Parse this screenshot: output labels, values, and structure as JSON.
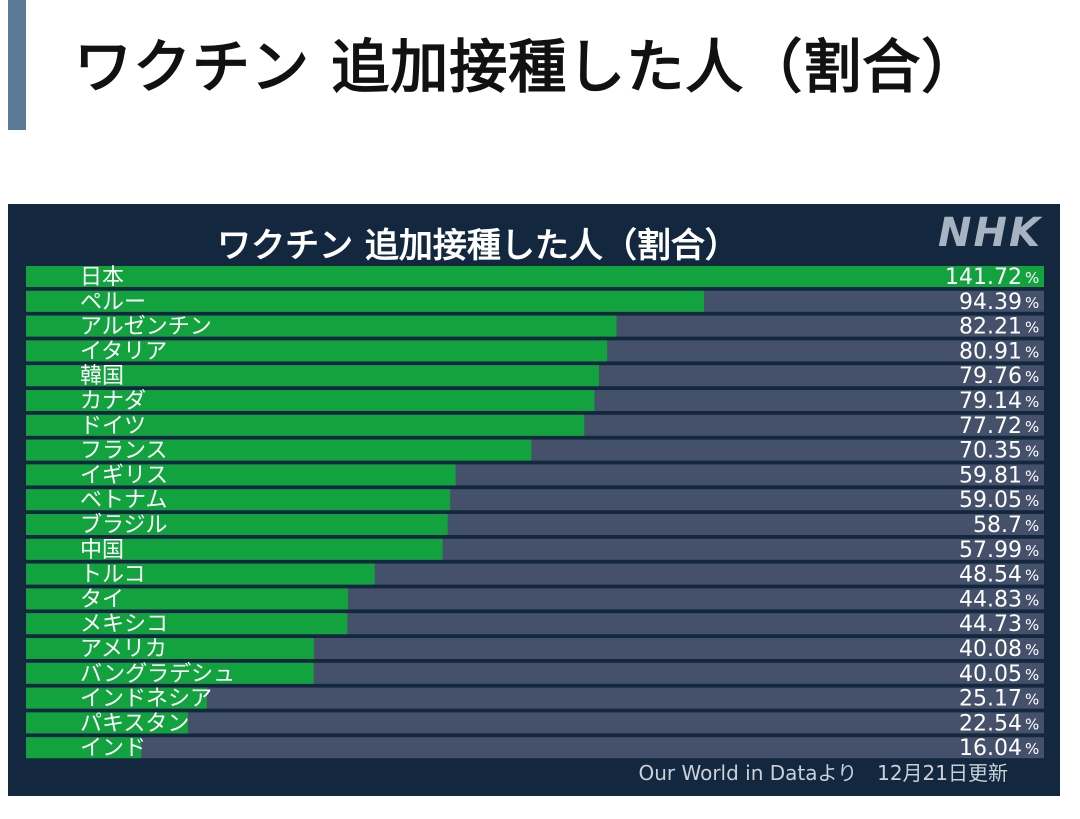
{
  "page": {
    "heading": "ワクチン 追加接種した人（割合）"
  },
  "panel": {
    "logo": "NHK",
    "source": "Our World in Dataより　12月21日更新"
  },
  "colors": {
    "bar_fill": "#12a33e",
    "bar_track": "#45516a",
    "panel_bg": "#13273f",
    "accent": "#5b7a96"
  },
  "chart_data": {
    "type": "bar",
    "orientation": "horizontal",
    "title": "ワクチン 追加接種した人（割合）",
    "unit": "%",
    "xlim": [
      0,
      141.72
    ],
    "categories": [
      "日本",
      "ペルー",
      "アルゼンチン",
      "イタリア",
      "韓国",
      "カナダ",
      "ドイツ",
      "フランス",
      "イギリス",
      "ベトナム",
      "ブラジル",
      "中国",
      "トルコ",
      "タイ",
      "メキシコ",
      "アメリカ",
      "バングラデシュ",
      "インドネシア",
      "パキスタン",
      "インド"
    ],
    "values": [
      141.72,
      94.39,
      82.21,
      80.91,
      79.76,
      79.14,
      77.72,
      70.35,
      59.81,
      59.05,
      58.7,
      57.99,
      48.54,
      44.83,
      44.73,
      40.08,
      40.05,
      25.17,
      22.54,
      16.04
    ],
    "value_labels": [
      "141.72",
      "94.39",
      "82.21",
      "80.91",
      "79.76",
      "79.14",
      "77.72",
      "70.35",
      "59.81",
      "59.05",
      "58.7",
      "57.99",
      "48.54",
      "44.83",
      "44.73",
      "40.08",
      "40.05",
      "25.17",
      "22.54",
      "16.04"
    ]
  }
}
